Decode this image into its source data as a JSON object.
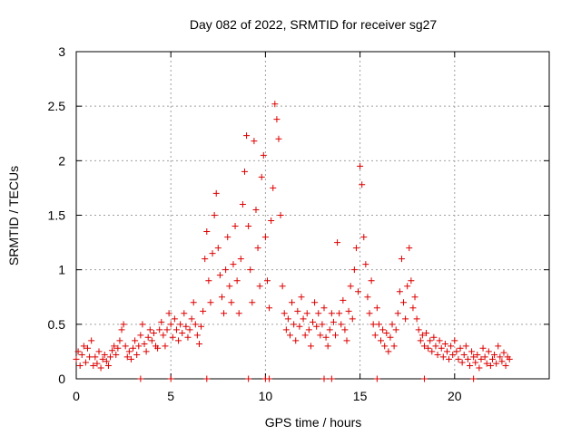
{
  "chart_data": {
    "type": "scatter",
    "title": "Day 082 of 2022, SRMTID for receiver sg27",
    "xlabel": "GPS time / hours",
    "ylabel": "SRMTID / TECUs",
    "xlim": [
      0,
      25
    ],
    "ylim": [
      0,
      3
    ],
    "xticks": [
      0,
      5,
      10,
      15,
      20
    ],
    "xtick_labels": [
      "0",
      "5",
      "10",
      "15",
      "20"
    ],
    "yticks": [
      0,
      0.5,
      1,
      1.5,
      2,
      2.5,
      3
    ],
    "ytick_labels": [
      "0",
      "0.5",
      "1",
      "1.5",
      "2",
      "2.5",
      "3"
    ],
    "grid": true,
    "marker": "+",
    "series": [
      {
        "name": "SRMTID",
        "color": "#dd0000",
        "points": [
          [
            0.0,
            0.18
          ],
          [
            0.1,
            0.25
          ],
          [
            0.2,
            0.12
          ],
          [
            0.3,
            0.22
          ],
          [
            0.4,
            0.3
          ],
          [
            0.5,
            0.15
          ],
          [
            0.6,
            0.28
          ],
          [
            0.7,
            0.2
          ],
          [
            0.8,
            0.35
          ],
          [
            0.9,
            0.12
          ],
          [
            1.0,
            0.2
          ],
          [
            1.1,
            0.14
          ],
          [
            1.2,
            0.25
          ],
          [
            1.3,
            0.1
          ],
          [
            1.4,
            0.18
          ],
          [
            1.5,
            0.22
          ],
          [
            1.6,
            0.16
          ],
          [
            1.7,
            0.12
          ],
          [
            1.8,
            0.2
          ],
          [
            1.9,
            0.26
          ],
          [
            2.0,
            0.3
          ],
          [
            2.1,
            0.22
          ],
          [
            2.2,
            0.28
          ],
          [
            2.3,
            0.35
          ],
          [
            2.4,
            0.45
          ],
          [
            2.5,
            0.5
          ],
          [
            2.6,
            0.3
          ],
          [
            2.7,
            0.2
          ],
          [
            2.8,
            0.25
          ],
          [
            2.9,
            0.18
          ],
          [
            3.0,
            0.28
          ],
          [
            3.1,
            0.35
          ],
          [
            3.2,
            0.22
          ],
          [
            3.3,
            0.3
          ],
          [
            3.4,
            0.4
          ],
          [
            3.5,
            0.5
          ],
          [
            3.6,
            0.32
          ],
          [
            3.7,
            0.25
          ],
          [
            3.8,
            0.38
          ],
          [
            3.9,
            0.45
          ],
          [
            4.0,
            0.35
          ],
          [
            4.1,
            0.42
          ],
          [
            4.2,
            0.3
          ],
          [
            4.3,
            0.28
          ],
          [
            4.4,
            0.45
          ],
          [
            4.5,
            0.52
          ],
          [
            4.6,
            0.4
          ],
          [
            4.7,
            0.3
          ],
          [
            4.8,
            0.45
          ],
          [
            4.9,
            0.6
          ],
          [
            5.0,
            0.5
          ],
          [
            5.1,
            0.38
          ],
          [
            5.2,
            0.55
          ],
          [
            5.3,
            0.45
          ],
          [
            5.4,
            0.35
          ],
          [
            5.5,
            0.5
          ],
          [
            5.6,
            0.42
          ],
          [
            5.7,
            0.6
          ],
          [
            5.8,
            0.48
          ],
          [
            5.9,
            0.38
          ],
          [
            6.0,
            0.45
          ],
          [
            6.1,
            0.55
          ],
          [
            6.2,
            0.7
          ],
          [
            6.3,
            0.5
          ],
          [
            6.4,
            0.4
          ],
          [
            6.5,
            0.32
          ],
          [
            6.6,
            0.48
          ],
          [
            6.7,
            0.62
          ],
          [
            6.8,
            1.1
          ],
          [
            6.9,
            1.35
          ],
          [
            7.0,
            0.9
          ],
          [
            7.1,
            0.7
          ],
          [
            7.2,
            1.15
          ],
          [
            7.3,
            1.5
          ],
          [
            7.4,
            1.7
          ],
          [
            7.5,
            1.2
          ],
          [
            7.6,
            0.95
          ],
          [
            7.7,
            0.75
          ],
          [
            7.8,
            0.6
          ],
          [
            7.9,
            1.0
          ],
          [
            8.0,
            1.3
          ],
          [
            8.1,
            0.85
          ],
          [
            8.2,
            0.7
          ],
          [
            8.3,
            1.05
          ],
          [
            8.4,
            1.4
          ],
          [
            8.5,
            0.9
          ],
          [
            8.6,
            0.6
          ],
          [
            8.7,
            1.1
          ],
          [
            8.8,
            1.6
          ],
          [
            8.9,
            1.9
          ],
          [
            9.0,
            2.23
          ],
          [
            9.1,
            1.4
          ],
          [
            9.2,
            1.0
          ],
          [
            9.3,
            0.7
          ],
          [
            9.4,
            2.18
          ],
          [
            9.5,
            1.55
          ],
          [
            9.6,
            1.2
          ],
          [
            9.7,
            0.85
          ],
          [
            9.8,
            1.85
          ],
          [
            9.9,
            2.05
          ],
          [
            10.0,
            1.3
          ],
          [
            10.1,
            0.9
          ],
          [
            10.2,
            0.65
          ],
          [
            10.3,
            1.45
          ],
          [
            10.4,
            1.75
          ],
          [
            10.5,
            2.52
          ],
          [
            10.6,
            2.38
          ],
          [
            10.7,
            2.2
          ],
          [
            10.8,
            1.5
          ],
          [
            10.9,
            0.85
          ],
          [
            11.0,
            0.6
          ],
          [
            11.1,
            0.45
          ],
          [
            11.2,
            0.55
          ],
          [
            11.3,
            0.4
          ],
          [
            11.4,
            0.7
          ],
          [
            11.5,
            0.5
          ],
          [
            11.6,
            0.35
          ],
          [
            11.7,
            0.62
          ],
          [
            11.8,
            0.48
          ],
          [
            11.9,
            0.75
          ],
          [
            12.0,
            0.55
          ],
          [
            12.1,
            0.4
          ],
          [
            12.2,
            0.6
          ],
          [
            12.3,
            0.45
          ],
          [
            12.4,
            0.3
          ],
          [
            12.5,
            0.52
          ],
          [
            12.6,
            0.7
          ],
          [
            12.7,
            0.48
          ],
          [
            12.8,
            0.6
          ],
          [
            12.9,
            0.4
          ],
          [
            13.0,
            0.5
          ],
          [
            13.1,
            0.65
          ],
          [
            13.2,
            0.38
          ],
          [
            13.3,
            0.3
          ],
          [
            13.4,
            0.45
          ],
          [
            13.5,
            0.6
          ],
          [
            13.6,
            0.52
          ],
          [
            13.7,
            0.4
          ],
          [
            13.8,
            1.25
          ],
          [
            13.9,
            0.6
          ],
          [
            14.0,
            0.5
          ],
          [
            14.1,
            0.72
          ],
          [
            14.2,
            0.45
          ],
          [
            14.3,
            0.35
          ],
          [
            14.4,
            0.62
          ],
          [
            14.5,
            0.85
          ],
          [
            14.6,
            0.55
          ],
          [
            14.7,
            1.0
          ],
          [
            14.8,
            1.2
          ],
          [
            14.9,
            0.8
          ],
          [
            15.0,
            1.95
          ],
          [
            15.1,
            1.78
          ],
          [
            15.2,
            1.3
          ],
          [
            15.3,
            1.05
          ],
          [
            15.4,
            0.75
          ],
          [
            15.5,
            0.6
          ],
          [
            15.6,
            0.9
          ],
          [
            15.7,
            0.5
          ],
          [
            15.8,
            0.4
          ],
          [
            15.9,
            0.65
          ],
          [
            16.0,
            0.5
          ],
          [
            16.1,
            0.35
          ],
          [
            16.2,
            0.45
          ],
          [
            16.3,
            0.3
          ],
          [
            16.4,
            0.42
          ],
          [
            16.5,
            0.25
          ],
          [
            16.6,
            0.38
          ],
          [
            16.7,
            0.5
          ],
          [
            16.8,
            0.3
          ],
          [
            16.9,
            0.45
          ],
          [
            17.0,
            0.6
          ],
          [
            17.1,
            0.8
          ],
          [
            17.2,
            1.1
          ],
          [
            17.3,
            0.7
          ],
          [
            17.4,
            0.55
          ],
          [
            17.5,
            0.85
          ],
          [
            17.6,
            1.2
          ],
          [
            17.7,
            0.9
          ],
          [
            17.8,
            0.65
          ],
          [
            17.9,
            0.75
          ],
          [
            18.0,
            0.55
          ],
          [
            18.1,
            0.45
          ],
          [
            18.2,
            0.35
          ],
          [
            18.3,
            0.4
          ],
          [
            18.4,
            0.3
          ],
          [
            18.5,
            0.42
          ],
          [
            18.6,
            0.28
          ],
          [
            18.7,
            0.35
          ],
          [
            18.8,
            0.25
          ],
          [
            18.9,
            0.38
          ],
          [
            19.0,
            0.3
          ],
          [
            19.1,
            0.22
          ],
          [
            19.2,
            0.35
          ],
          [
            19.3,
            0.28
          ],
          [
            19.4,
            0.2
          ],
          [
            19.5,
            0.32
          ],
          [
            19.6,
            0.25
          ],
          [
            19.7,
            0.18
          ],
          [
            19.8,
            0.3
          ],
          [
            19.9,
            0.22
          ],
          [
            20.0,
            0.35
          ],
          [
            20.1,
            0.25
          ],
          [
            20.2,
            0.18
          ],
          [
            20.3,
            0.28
          ],
          [
            20.4,
            0.15
          ],
          [
            20.5,
            0.22
          ],
          [
            20.6,
            0.3
          ],
          [
            20.7,
            0.18
          ],
          [
            20.8,
            0.12
          ],
          [
            20.9,
            0.25
          ],
          [
            21.0,
            0.2
          ],
          [
            21.1,
            0.15
          ],
          [
            21.2,
            0.22
          ],
          [
            21.3,
            0.1
          ],
          [
            21.4,
            0.18
          ],
          [
            21.5,
            0.28
          ],
          [
            21.6,
            0.2
          ],
          [
            21.7,
            0.14
          ],
          [
            21.8,
            0.25
          ],
          [
            21.9,
            0.12
          ],
          [
            22.0,
            0.18
          ],
          [
            22.1,
            0.22
          ],
          [
            22.2,
            0.14
          ],
          [
            22.3,
            0.3
          ],
          [
            22.4,
            0.2
          ],
          [
            22.5,
            0.16
          ],
          [
            22.6,
            0.24
          ],
          [
            22.7,
            0.12
          ],
          [
            22.8,
            0.2
          ],
          [
            22.9,
            0.18
          ],
          [
            3.4,
            0.0
          ],
          [
            5.0,
            0.0
          ],
          [
            6.9,
            0.0
          ],
          [
            9.1,
            0.0
          ],
          [
            10.0,
            0.0
          ],
          [
            10.2,
            0.0
          ],
          [
            13.1,
            0.0
          ],
          [
            13.5,
            0.0
          ],
          [
            15.9,
            0.0
          ],
          [
            18.4,
            0.0
          ],
          [
            21.0,
            0.0
          ]
        ]
      }
    ]
  }
}
